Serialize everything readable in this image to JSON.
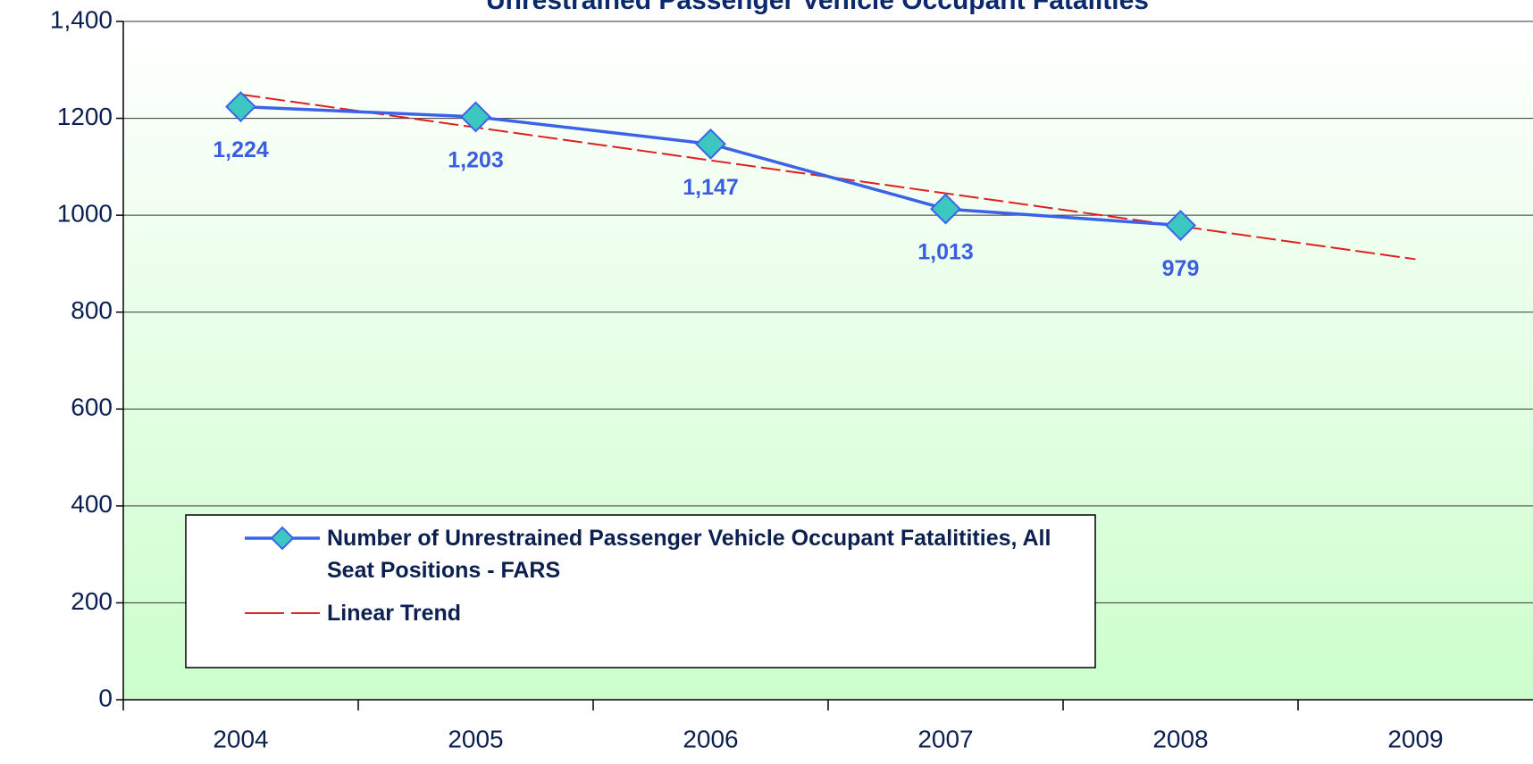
{
  "chart_data": {
    "type": "line",
    "title": "Unrestrained Passenger Vehicle Occupant  Fatalities",
    "categories": [
      "2004",
      "2005",
      "2006",
      "2007",
      "2008",
      "2009"
    ],
    "series": [
      {
        "name": "Number of Unrestrained Passenger Vehicle Occupant Fatalitities, All Seat Positions - FARS",
        "color": "#3a63e8",
        "marker_color": "#3cc8c0",
        "values": [
          1224,
          1203,
          1147,
          1013,
          979,
          null
        ],
        "value_labels": [
          "1,224",
          "1,203",
          "1,147",
          "1,013",
          "979",
          null
        ]
      },
      {
        "name": "Linear Trend",
        "color": "#e02020",
        "dashed": true,
        "values": [
          1249.2,
          1181.2,
          1113.2,
          1045.2,
          977.2,
          909.2
        ]
      }
    ],
    "ylim": [
      0,
      1400
    ],
    "yticks": [
      0,
      200,
      400,
      600,
      800,
      1000,
      1200,
      {
        "value": 1400,
        "label": "1,400"
      }
    ],
    "grid": true,
    "legend": "lower left"
  }
}
